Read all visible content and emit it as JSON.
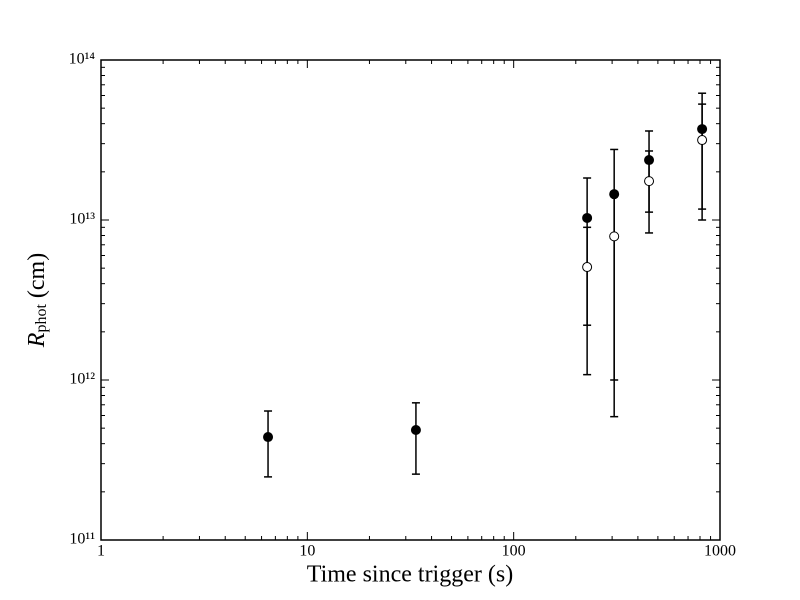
{
  "chart_data": {
    "type": "scatter",
    "xlabel": "Time since trigger (s)",
    "ylabel": {
      "symbol": "R",
      "subscript": "phot",
      "unit": "(cm)"
    },
    "log_x": true,
    "log_y": true,
    "xlim": [
      1,
      1000
    ],
    "ylim": [
      100000000000.0,
      100000000000000.0
    ],
    "xticks": [
      1,
      10,
      100,
      1000
    ],
    "yticks": [
      {
        "value": 100000000000.0,
        "label": "10¹¹"
      },
      {
        "value": 1000000000000.0,
        "label": "10¹²"
      },
      {
        "value": 10000000000000.0,
        "label": "10¹³"
      },
      {
        "value": 100000000000000.0,
        "label": "10¹⁴"
      }
    ],
    "x": [
      6.45,
      33.6,
      227,
      307,
      453,
      819
    ],
    "series": [
      {
        "color": "#000000",
        "fill": "#000000",
        "values": [
          440000000000.0,
          487000000000.0,
          10300000000000.0,
          14500000000000.0,
          23700000000000.0,
          37000000000000.0
        ],
        "y_low": [
          248000000000.0,
          258000000000.0,
          2200000000000.0,
          1000000000000.0,
          11200000000000.0,
          11700000000000.0
        ],
        "y_high": [
          640000000000.0,
          720000000000.0,
          18300000000000.0,
          27600000000000.0,
          36000000000000.0,
          62000000000000.0
        ]
      },
      {
        "color": "#000000",
        "fill": "#ffffff",
        "values": [
          null,
          null,
          5080000000000.0,
          7900000000000.0,
          17500000000000.0,
          31600000000000.0
        ],
        "y_low": [
          null,
          null,
          1080000000000.0,
          590000000000.0,
          8300000000000.0,
          10000000000000.0
        ],
        "y_high": [
          null,
          null,
          9000000000000.0,
          15000000000000.0,
          27000000000000.0,
          53000000000000.0
        ]
      }
    ]
  }
}
